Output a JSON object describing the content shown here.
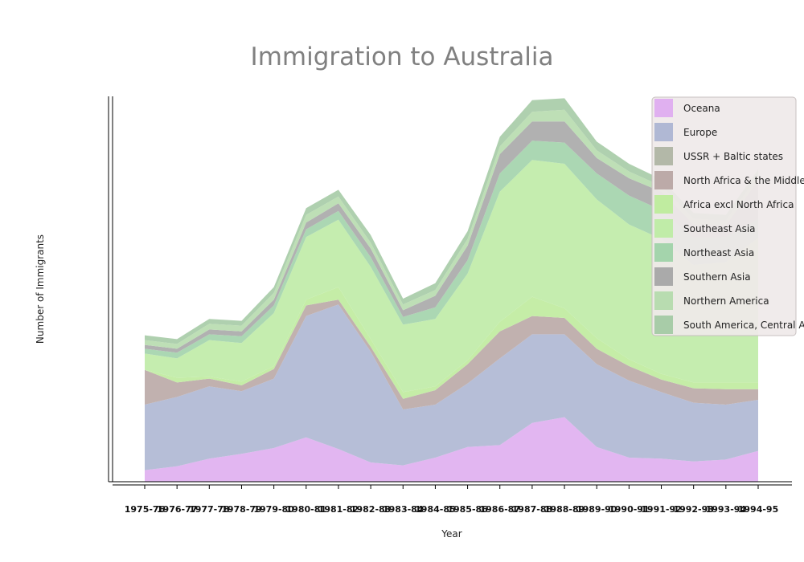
{
  "chart_data": {
    "type": "area",
    "stacked": true,
    "title": "Immigration to Australia",
    "xlabel": "Year",
    "ylabel": "Number of Immigrants",
    "ylim": [
      0,
      400
    ],
    "grid": false,
    "legend_position": "top-right",
    "categories": [
      "1975-76",
      "1976-77",
      "1977-78",
      "1978-79",
      "1979-80",
      "1980-81",
      "1981-82",
      "1982-83",
      "1983-84",
      "1984-85",
      "1985-86",
      "1986-87",
      "1987-88",
      "1988-89",
      "1989-90",
      "1990-91",
      "1991-92",
      "1992-93",
      "1993-94",
      "1994-95"
    ],
    "series": [
      {
        "name": "Oceana",
        "color": "#e0b0f0",
        "values": [
          12,
          16,
          24,
          29,
          35,
          46,
          34,
          20,
          17,
          25,
          36,
          38,
          61,
          67,
          36,
          25,
          24,
          21,
          23,
          32
        ]
      },
      {
        "name": "Europe",
        "color": "#b0b8d4",
        "values": [
          68,
          72,
          75,
          65,
          72,
          126,
          150,
          115,
          58,
          55,
          66,
          90,
          92,
          86,
          86,
          80,
          69,
          61,
          57,
          53
        ]
      },
      {
        "name": "USSR + Baltic states",
        "color": "#b3b8a8",
        "values": [
          0,
          0,
          0,
          0,
          0,
          0,
          0,
          0,
          0,
          0,
          0,
          0,
          0,
          0,
          0,
          0,
          0,
          0,
          0,
          0
        ]
      },
      {
        "name": "North Africa & the Middle East",
        "color": "#bcaaa8",
        "values": [
          36,
          15,
          8,
          6,
          10,
          11,
          5,
          5,
          11,
          15,
          20,
          28,
          19,
          17,
          16,
          15,
          13,
          15,
          16,
          11
        ]
      },
      {
        "name": "Africa excl North Africa",
        "color": "#c0eca0",
        "values": [
          0,
          5,
          2,
          4,
          3,
          6,
          13,
          8,
          7,
          4,
          4,
          10,
          20,
          10,
          11,
          7,
          6,
          6,
          7,
          7
        ]
      },
      {
        "name": "Southeast Asia",
        "color": "#c0eca8",
        "values": [
          17,
          20,
          38,
          40,
          55,
          65,
          70,
          75,
          70,
          70,
          90,
          135,
          142,
          150,
          144,
          140,
          140,
          122,
          125,
          150
        ]
      },
      {
        "name": "Northeast Asia",
        "color": "#a4d4ac",
        "values": [
          5,
          6,
          6,
          7,
          8,
          8,
          9,
          10,
          8,
          12,
          14,
          19,
          20,
          22,
          27,
          30,
          30,
          28,
          26,
          20
        ]
      },
      {
        "name": "Southern Asia",
        "color": "#aaaaaa",
        "values": [
          4,
          4,
          5,
          5,
          6,
          7,
          8,
          9,
          7,
          12,
          15,
          20,
          20,
          22,
          16,
          18,
          19,
          14,
          12,
          40
        ]
      },
      {
        "name": "Northern America",
        "color": "#b8dcb0",
        "values": [
          5,
          5,
          6,
          6,
          7,
          8,
          7,
          6,
          6,
          6,
          7,
          8,
          10,
          12,
          8,
          7,
          6,
          6,
          5,
          5
        ]
      },
      {
        "name": "South America, Central America & the Caribbean",
        "color": "#a8cca8",
        "values": [
          5,
          5,
          5,
          5,
          6,
          7,
          7,
          8,
          6,
          7,
          8,
          10,
          12,
          12,
          9,
          8,
          7,
          6,
          6,
          6
        ]
      }
    ]
  }
}
